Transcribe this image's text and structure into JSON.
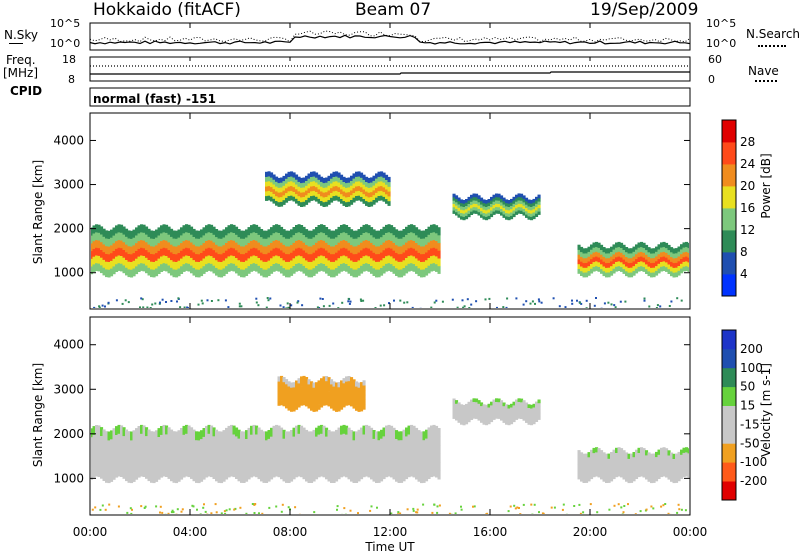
{
  "header": {
    "station": "Hokkaido (fitACF)",
    "beam": "Beam 07",
    "date": "19/Sep/2009"
  },
  "noise_panel": {
    "left_label": "N.Sky",
    "right_label": "N.Search",
    "left_ticks": [
      "10^5",
      "10^0"
    ],
    "right_ticks": [
      "10^5",
      "10^0"
    ]
  },
  "freq_panel": {
    "left_label_line1": "Freq.",
    "left_label_line2": "[MHz]",
    "left_ticks": [
      "18",
      "8"
    ],
    "right_label": "Nave",
    "right_ticks": [
      "60",
      "0"
    ]
  },
  "cpid": {
    "label": "CPID",
    "value": "normal (fast) -151"
  },
  "x_axis": {
    "label": "Time UT",
    "ticks": [
      "00:00",
      "04:00",
      "08:00",
      "12:00",
      "16:00",
      "20:00",
      "00:00"
    ]
  },
  "colors": {
    "power": [
      "#0033ff",
      "#1f4fb0",
      "#2e8b57",
      "#7dc87d",
      "#e8e020",
      "#f08c1e",
      "#ff4a1a",
      "#e00000"
    ],
    "velocity": [
      "#e00000",
      "#ff5a1a",
      "#f0a020",
      "#c8c8c8",
      "#c8c8c8",
      "#66d23c",
      "#2e8b57",
      "#1f4fb0",
      "#1d34c8"
    ],
    "ground": "#aaaaaa",
    "text": "#000000"
  },
  "chart_data": [
    {
      "type": "heatmap",
      "title": "Power [dB]",
      "ylabel": "Slant Range [km]",
      "xlabel": "Time UT",
      "ylim": [
        200,
        4600
      ],
      "y_ticks": [
        1000,
        2000,
        3000,
        4000
      ],
      "xlim_hours": [
        0,
        24
      ],
      "colorbar_label": "Power [dB]",
      "colorbar_ticks": [
        "4",
        "8",
        "12",
        "16",
        "20",
        "24",
        "28"
      ],
      "echo_regions": [
        {
          "name": "main band",
          "time_start_hours": 0,
          "time_end_hours": 14,
          "range_low_km": 900,
          "range_high_km": 2100,
          "peak_power_db": 28
        },
        {
          "name": "high arc",
          "time_start_hours": 7,
          "time_end_hours": 12,
          "range_low_km": 2500,
          "range_high_km": 3300,
          "peak_power_db": 24
        },
        {
          "name": "afternoon patch",
          "time_start_hours": 14.5,
          "time_end_hours": 18,
          "range_low_km": 2200,
          "range_high_km": 2800,
          "peak_power_db": 20
        },
        {
          "name": "evening band",
          "time_start_hours": 19.5,
          "time_end_hours": 24,
          "range_low_km": 900,
          "range_high_km": 1700,
          "peak_power_db": 28
        }
      ]
    },
    {
      "type": "heatmap",
      "title": "Velocity [m s-1]",
      "ylabel": "Slant Range [km]",
      "xlabel": "Time UT",
      "ylim": [
        200,
        4600
      ],
      "y_ticks": [
        1000,
        2000,
        3000,
        4000
      ],
      "xlim_hours": [
        0,
        24
      ],
      "colorbar_label": "Velocity [m s-1]",
      "colorbar_ticks": [
        "200",
        "100",
        "50",
        "15",
        "-15",
        "-50",
        "-100",
        "-200"
      ],
      "echo_regions": [
        {
          "name": "main band ground scatter",
          "time_start_hours": 0,
          "time_end_hours": 14,
          "range_low_km": 900,
          "range_high_km": 2200,
          "velocity": 0
        },
        {
          "name": "high arc",
          "time_start_hours": 7.5,
          "time_end_hours": 11,
          "range_low_km": 2500,
          "range_high_km": 3300,
          "velocity": -60
        },
        {
          "name": "afternoon patch",
          "time_start_hours": 14.5,
          "time_end_hours": 18,
          "range_low_km": 2200,
          "range_high_km": 2800,
          "velocity": 0
        },
        {
          "name": "evening band",
          "time_start_hours": 19.5,
          "time_end_hours": 24,
          "range_low_km": 900,
          "range_high_km": 1700,
          "velocity": 0
        }
      ]
    }
  ]
}
